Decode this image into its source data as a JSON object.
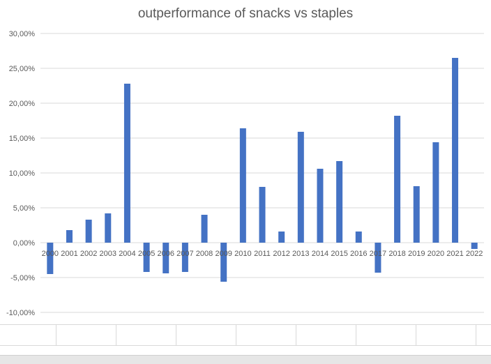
{
  "chart_data": {
    "type": "bar",
    "title": "outperformance of snacks vs staples",
    "xlabel": "",
    "ylabel": "",
    "ylim": [
      -10,
      30
    ],
    "yticks": [
      30,
      25,
      20,
      15,
      10,
      5,
      0,
      -5,
      -10
    ],
    "ytick_labels": [
      "30,00%",
      "25,00%",
      "20,00%",
      "15,00%",
      "10,00%",
      "5,00%",
      "0,00%",
      "-5,00%",
      "-10,00%"
    ],
    "categories": [
      "2000",
      "2001",
      "2002",
      "2003",
      "2004",
      "2005",
      "2006",
      "2007",
      "2008",
      "2009",
      "2010",
      "2011",
      "2012",
      "2013",
      "2014",
      "2015",
      "2016",
      "2017",
      "2018",
      "2019",
      "2020",
      "2021",
      "2022"
    ],
    "values": [
      -4.5,
      1.8,
      3.3,
      4.2,
      22.8,
      -4.2,
      -4.4,
      -4.2,
      4.0,
      -5.6,
      16.4,
      8.0,
      1.6,
      15.9,
      10.6,
      11.7,
      1.6,
      -4.3,
      18.2,
      8.1,
      14.4,
      26.5,
      -0.9
    ],
    "grid": true,
    "legend": "none",
    "bar_color": "#4472c4"
  }
}
